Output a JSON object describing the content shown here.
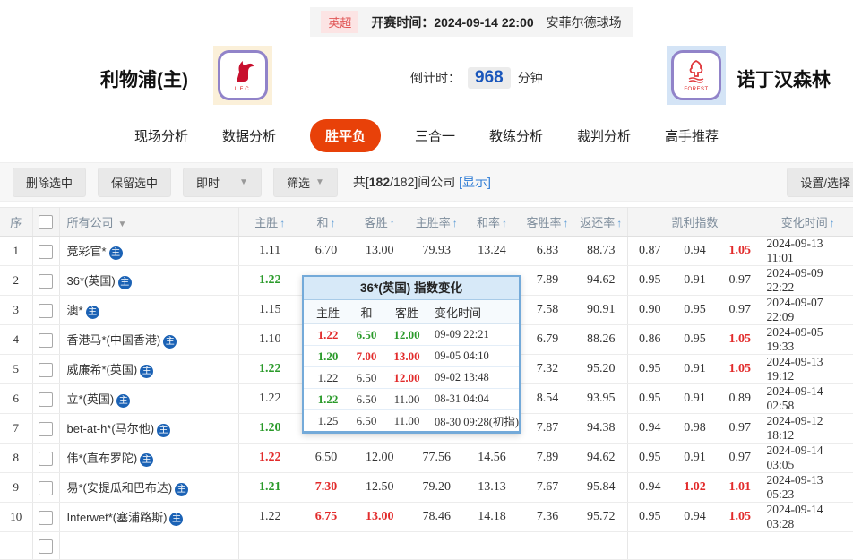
{
  "match": {
    "league_badge": "英超",
    "kickoff_label": "开赛时间：",
    "kickoff_time": "2024-09-14 22:00",
    "venue": "安菲尔德球场",
    "home_name": "利物浦(主)",
    "away_name": "诺丁汉森林",
    "home_logo_caption": "L.F.C.",
    "away_logo_caption": "FOREST",
    "countdown_label": "倒计时：",
    "countdown_minutes": "968",
    "countdown_unit": "分钟"
  },
  "nav_tabs": [
    {
      "label": "现场分析",
      "active": false
    },
    {
      "label": "数据分析",
      "active": false
    },
    {
      "label": "胜平负",
      "active": true
    },
    {
      "label": "三合一",
      "active": false
    },
    {
      "label": "教练分析",
      "active": false
    },
    {
      "label": "裁判分析",
      "active": false
    },
    {
      "label": "高手推荐",
      "active": false
    }
  ],
  "toolbar": {
    "delete_selected": "删除选中",
    "keep_selected": "保留选中",
    "time_filter": "即时",
    "filter": "筛选",
    "count_prefix": "共[",
    "count_current": "182",
    "count_rest": "/182]间公司",
    "show_link": "[显示]",
    "settings": "设置/选择"
  },
  "table": {
    "col_seq": "序",
    "col_company": "所有公司",
    "company_badge": "主",
    "headers": [
      {
        "label": "主胜",
        "arrow": true
      },
      {
        "label": "和",
        "arrow": true
      },
      {
        "label": "客胜",
        "arrow": true
      },
      {
        "label": "主胜率",
        "arrow": true
      },
      {
        "label": "和率",
        "arrow": true
      },
      {
        "label": "客胜率",
        "arrow": true
      },
      {
        "label": "返还率",
        "arrow": true
      },
      {
        "label": "凯利指数",
        "arrow": false
      },
      {
        "label": "变化时间",
        "arrow": true
      }
    ],
    "rows": [
      {
        "no": "1",
        "company": "竞彩官*",
        "cells": [
          [
            "1.11",
            ""
          ],
          [
            "6.70",
            ""
          ],
          [
            "13.00",
            ""
          ],
          [
            "79.93",
            ""
          ],
          [
            "13.24",
            ""
          ],
          [
            "6.83",
            ""
          ],
          [
            "88.73",
            ""
          ],
          [
            "0.87",
            ""
          ],
          [
            "0.94",
            ""
          ],
          [
            "1.05",
            "red"
          ]
        ],
        "time": "2024-09-13 11:01"
      },
      {
        "no": "2",
        "company": "36*(英国)",
        "cells": [
          [
            "1.22",
            "green"
          ],
          [
            "6.50",
            ""
          ],
          [
            "12.00",
            "red"
          ],
          [
            "77.56",
            ""
          ],
          [
            "14.56",
            ""
          ],
          [
            "7.89",
            ""
          ],
          [
            "94.62",
            ""
          ],
          [
            "0.95",
            ""
          ],
          [
            "0.91",
            ""
          ],
          [
            "0.97",
            ""
          ]
        ],
        "time": "2024-09-09 22:22"
      },
      {
        "no": "3",
        "company": "澳*",
        "cells": [
          [
            "1.15",
            ""
          ],
          [
            "",
            ""
          ],
          [
            "",
            ""
          ],
          [
            "",
            ""
          ],
          [
            "",
            ""
          ],
          [
            "7.58",
            ""
          ],
          [
            "90.91",
            ""
          ],
          [
            "0.90",
            ""
          ],
          [
            "0.95",
            ""
          ],
          [
            "0.97",
            ""
          ]
        ],
        "time": "2024-09-07 22:09"
      },
      {
        "no": "4",
        "company": "香港马*(中国香港)",
        "cells": [
          [
            "1.10",
            ""
          ],
          [
            "",
            ""
          ],
          [
            "",
            ""
          ],
          [
            "",
            ""
          ],
          [
            "",
            ""
          ],
          [
            "6.79",
            ""
          ],
          [
            "88.26",
            ""
          ],
          [
            "0.86",
            ""
          ],
          [
            "0.95",
            ""
          ],
          [
            "1.05",
            "red"
          ]
        ],
        "time": "2024-09-05 19:33"
      },
      {
        "no": "5",
        "company": "威廉希*(英国)",
        "cells": [
          [
            "1.22",
            "green"
          ],
          [
            "",
            ""
          ],
          [
            "",
            ""
          ],
          [
            "",
            ""
          ],
          [
            "",
            ""
          ],
          [
            "7.32",
            ""
          ],
          [
            "95.20",
            ""
          ],
          [
            "0.95",
            ""
          ],
          [
            "0.91",
            ""
          ],
          [
            "1.05",
            "red"
          ]
        ],
        "time": "2024-09-13 19:12"
      },
      {
        "no": "6",
        "company": "立*(英国)",
        "cells": [
          [
            "1.22",
            ""
          ],
          [
            "",
            ""
          ],
          [
            "",
            ""
          ],
          [
            "",
            ""
          ],
          [
            "",
            ""
          ],
          [
            "8.54",
            ""
          ],
          [
            "93.95",
            ""
          ],
          [
            "0.95",
            ""
          ],
          [
            "0.91",
            ""
          ],
          [
            "0.89",
            ""
          ]
        ],
        "time": "2024-09-14 02:58"
      },
      {
        "no": "7",
        "company": "bet-at-h*(马尔他)",
        "cells": [
          [
            "1.20",
            "green"
          ],
          [
            "",
            ""
          ],
          [
            "",
            ""
          ],
          [
            "",
            ""
          ],
          [
            "",
            ""
          ],
          [
            "7.87",
            ""
          ],
          [
            "94.38",
            ""
          ],
          [
            "0.94",
            ""
          ],
          [
            "0.98",
            ""
          ],
          [
            "0.97",
            ""
          ]
        ],
        "time": "2024-09-12 18:12"
      },
      {
        "no": "8",
        "company": "伟*(直布罗陀)",
        "cells": [
          [
            "1.22",
            "red"
          ],
          [
            "6.50",
            ""
          ],
          [
            "12.00",
            ""
          ],
          [
            "77.56",
            ""
          ],
          [
            "14.56",
            ""
          ],
          [
            "7.89",
            ""
          ],
          [
            "94.62",
            ""
          ],
          [
            "0.95",
            ""
          ],
          [
            "0.91",
            ""
          ],
          [
            "0.97",
            ""
          ]
        ],
        "time": "2024-09-14 03:05"
      },
      {
        "no": "9",
        "company": "易*(安提瓜和巴布达)",
        "cells": [
          [
            "1.21",
            "green"
          ],
          [
            "7.30",
            "red"
          ],
          [
            "12.50",
            ""
          ],
          [
            "79.20",
            ""
          ],
          [
            "13.13",
            ""
          ],
          [
            "7.67",
            ""
          ],
          [
            "95.84",
            ""
          ],
          [
            "0.94",
            ""
          ],
          [
            "1.02",
            "red"
          ],
          [
            "1.01",
            "red"
          ]
        ],
        "time": "2024-09-13 05:23"
      },
      {
        "no": "10",
        "company": "Interwet*(塞浦路斯)",
        "cells": [
          [
            "1.22",
            ""
          ],
          [
            "6.75",
            "red"
          ],
          [
            "13.00",
            "red"
          ],
          [
            "78.46",
            ""
          ],
          [
            "14.18",
            ""
          ],
          [
            "7.36",
            ""
          ],
          [
            "95.72",
            ""
          ],
          [
            "0.95",
            ""
          ],
          [
            "0.94",
            ""
          ],
          [
            "1.05",
            "red"
          ]
        ],
        "time": "2024-09-14 03:28"
      }
    ]
  },
  "popup": {
    "title": "36*(英国) 指数变化",
    "headers": [
      "主胜",
      "和",
      "客胜",
      "变化时间"
    ],
    "rows": [
      {
        "cells": [
          [
            "1.22",
            "red"
          ],
          [
            "6.50",
            "green"
          ],
          [
            "12.00",
            "green"
          ]
        ],
        "time": "09-09 22:21"
      },
      {
        "cells": [
          [
            "1.20",
            "green"
          ],
          [
            "7.00",
            "red"
          ],
          [
            "13.00",
            "red"
          ]
        ],
        "time": "09-05 04:10"
      },
      {
        "cells": [
          [
            "1.22",
            ""
          ],
          [
            "6.50",
            ""
          ],
          [
            "12.00",
            "red"
          ]
        ],
        "time": "09-02 13:48"
      },
      {
        "cells": [
          [
            "1.22",
            "green"
          ],
          [
            "6.50",
            ""
          ],
          [
            "11.00",
            ""
          ]
        ],
        "time": "08-31 04:04"
      },
      {
        "cells": [
          [
            "1.25",
            ""
          ],
          [
            "6.50",
            ""
          ],
          [
            "11.00",
            ""
          ]
        ],
        "time": "08-30 09:28(初指)"
      }
    ]
  },
  "colors": {
    "odds_up_red": "#e22b2b",
    "odds_down_green": "#2a9a2a",
    "link_blue": "#2d7bd4",
    "sort_arrow_blue": "#5b9bd5",
    "active_tab_orange": "#e84109",
    "company_badge_blue": "#1b62b5",
    "countdown_blue": "#1a56bb",
    "league_badge_pink": "#fce4e4",
    "league_badge_text": "#e05555"
  }
}
